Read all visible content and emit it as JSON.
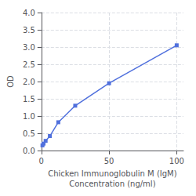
{
  "chart_data": {
    "type": "line",
    "xlabel": "Chicken Immunoglobulin M (IgM)\nConcentration (ng/ml)",
    "ylabel": "OD",
    "x": [
      0.78,
      1.56,
      3.13,
      6.25,
      12.5,
      25,
      50,
      100
    ],
    "values": [
      0.15,
      0.2,
      0.28,
      0.42,
      0.82,
      1.3,
      1.95,
      3.05
    ],
    "marker": "square",
    "xlim": [
      0,
      105
    ],
    "xticks": [
      0,
      50,
      100
    ],
    "ylim": [
      0,
      4
    ],
    "yticks": [
      {
        "value": 0,
        "label": "0.0"
      },
      0.5,
      {
        "value": 1,
        "label": "1.0"
      },
      1.5,
      {
        "value": 2,
        "label": "2.0"
      },
      2.5,
      {
        "value": 3,
        "label": "3.0"
      },
      3.5,
      {
        "value": 4,
        "label": "4.0"
      }
    ],
    "grid": true
  }
}
